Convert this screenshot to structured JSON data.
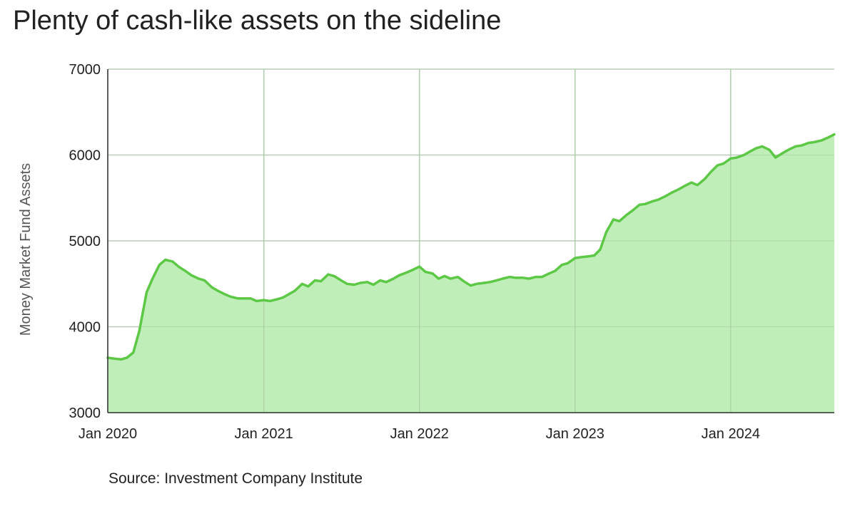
{
  "chart_data": {
    "type": "area",
    "title": "Plenty of cash-like assets on the sideline",
    "source": "Source: Investment Company Institute",
    "ylabel": "Money Market Fund Assets",
    "xlabel": "",
    "ylim": [
      3000,
      7000
    ],
    "y_ticks": [
      "3000",
      "4000",
      "5000",
      "6000",
      "7000"
    ],
    "x_ticks": [
      {
        "label": "Jan 2020",
        "date": "2020-01-01"
      },
      {
        "label": "Jan 2021",
        "date": "2021-01-01"
      },
      {
        "label": "Jan 2022",
        "date": "2022-01-01"
      },
      {
        "label": "Jan 2023",
        "date": "2023-01-01"
      },
      {
        "label": "Jan 2024",
        "date": "2024-01-01"
      }
    ],
    "xlim": [
      "2020-01-01",
      "2024-08-31"
    ],
    "grid": true,
    "colors": {
      "line": "#5cc846",
      "fill": "#bfeeb8",
      "grid": "#cccccc"
    },
    "series": [
      {
        "points": [
          [
            "2020-01-01",
            3640
          ],
          [
            "2020-01-15",
            3630
          ],
          [
            "2020-02-01",
            3620
          ],
          [
            "2020-02-15",
            3640
          ],
          [
            "2020-03-01",
            3700
          ],
          [
            "2020-03-15",
            3950
          ],
          [
            "2020-04-01",
            4400
          ],
          [
            "2020-04-15",
            4560
          ],
          [
            "2020-05-01",
            4720
          ],
          [
            "2020-05-15",
            4780
          ],
          [
            "2020-06-01",
            4760
          ],
          [
            "2020-06-15",
            4700
          ],
          [
            "2020-07-01",
            4650
          ],
          [
            "2020-07-15",
            4600
          ],
          [
            "2020-08-01",
            4560
          ],
          [
            "2020-08-15",
            4540
          ],
          [
            "2020-09-01",
            4460
          ],
          [
            "2020-09-15",
            4420
          ],
          [
            "2020-10-01",
            4380
          ],
          [
            "2020-10-15",
            4350
          ],
          [
            "2020-11-01",
            4330
          ],
          [
            "2020-11-15",
            4330
          ],
          [
            "2020-12-01",
            4330
          ],
          [
            "2020-12-15",
            4300
          ],
          [
            "2021-01-01",
            4310
          ],
          [
            "2021-01-15",
            4300
          ],
          [
            "2021-02-01",
            4320
          ],
          [
            "2021-02-15",
            4340
          ],
          [
            "2021-03-01",
            4380
          ],
          [
            "2021-03-15",
            4420
          ],
          [
            "2021-04-01",
            4500
          ],
          [
            "2021-04-15",
            4470
          ],
          [
            "2021-05-01",
            4540
          ],
          [
            "2021-05-15",
            4530
          ],
          [
            "2021-06-01",
            4610
          ],
          [
            "2021-06-15",
            4590
          ],
          [
            "2021-07-01",
            4540
          ],
          [
            "2021-07-15",
            4500
          ],
          [
            "2021-08-01",
            4490
          ],
          [
            "2021-08-15",
            4510
          ],
          [
            "2021-09-01",
            4520
          ],
          [
            "2021-09-15",
            4490
          ],
          [
            "2021-10-01",
            4540
          ],
          [
            "2021-10-15",
            4520
          ],
          [
            "2021-11-01",
            4560
          ],
          [
            "2021-11-15",
            4600
          ],
          [
            "2021-12-01",
            4630
          ],
          [
            "2021-12-15",
            4660
          ],
          [
            "2022-01-01",
            4700
          ],
          [
            "2022-01-15",
            4640
          ],
          [
            "2022-02-01",
            4620
          ],
          [
            "2022-02-15",
            4560
          ],
          [
            "2022-03-01",
            4590
          ],
          [
            "2022-03-15",
            4560
          ],
          [
            "2022-04-01",
            4580
          ],
          [
            "2022-04-15",
            4530
          ],
          [
            "2022-05-01",
            4480
          ],
          [
            "2022-05-15",
            4500
          ],
          [
            "2022-06-01",
            4510
          ],
          [
            "2022-06-15",
            4520
          ],
          [
            "2022-07-01",
            4540
          ],
          [
            "2022-07-15",
            4560
          ],
          [
            "2022-08-01",
            4580
          ],
          [
            "2022-08-15",
            4570
          ],
          [
            "2022-09-01",
            4570
          ],
          [
            "2022-09-15",
            4560
          ],
          [
            "2022-10-01",
            4580
          ],
          [
            "2022-10-15",
            4580
          ],
          [
            "2022-11-01",
            4620
          ],
          [
            "2022-11-15",
            4650
          ],
          [
            "2022-12-01",
            4720
          ],
          [
            "2022-12-15",
            4740
          ],
          [
            "2023-01-01",
            4800
          ],
          [
            "2023-01-15",
            4810
          ],
          [
            "2023-02-01",
            4820
          ],
          [
            "2023-02-15",
            4830
          ],
          [
            "2023-03-01",
            4900
          ],
          [
            "2023-03-15",
            5100
          ],
          [
            "2023-04-01",
            5250
          ],
          [
            "2023-04-15",
            5230
          ],
          [
            "2023-05-01",
            5300
          ],
          [
            "2023-05-15",
            5350
          ],
          [
            "2023-06-01",
            5420
          ],
          [
            "2023-06-15",
            5430
          ],
          [
            "2023-07-01",
            5460
          ],
          [
            "2023-07-15",
            5480
          ],
          [
            "2023-08-01",
            5520
          ],
          [
            "2023-08-15",
            5560
          ],
          [
            "2023-09-01",
            5600
          ],
          [
            "2023-09-15",
            5640
          ],
          [
            "2023-10-01",
            5680
          ],
          [
            "2023-10-15",
            5650
          ],
          [
            "2023-11-01",
            5720
          ],
          [
            "2023-11-15",
            5800
          ],
          [
            "2023-12-01",
            5880
          ],
          [
            "2023-12-15",
            5900
          ],
          [
            "2024-01-01",
            5960
          ],
          [
            "2024-01-15",
            5970
          ],
          [
            "2024-02-01",
            6000
          ],
          [
            "2024-02-15",
            6040
          ],
          [
            "2024-03-01",
            6080
          ],
          [
            "2024-03-15",
            6100
          ],
          [
            "2024-04-01",
            6060
          ],
          [
            "2024-04-15",
            5970
          ],
          [
            "2024-05-01",
            6020
          ],
          [
            "2024-05-15",
            6060
          ],
          [
            "2024-06-01",
            6100
          ],
          [
            "2024-06-15",
            6110
          ],
          [
            "2024-07-01",
            6140
          ],
          [
            "2024-07-15",
            6150
          ],
          [
            "2024-08-01",
            6170
          ],
          [
            "2024-08-15",
            6200
          ],
          [
            "2024-08-31",
            6240
          ]
        ]
      }
    ]
  }
}
